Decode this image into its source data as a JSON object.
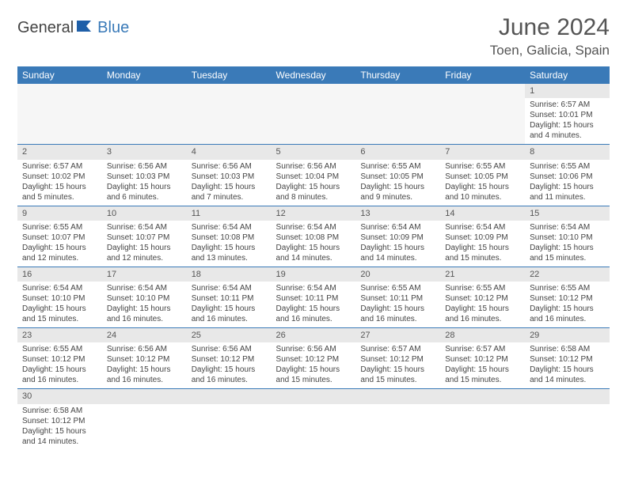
{
  "logo": {
    "part1": "General",
    "part2": "Blue"
  },
  "title": "June 2024",
  "location": "Toen, Galicia, Spain",
  "colors": {
    "header_bg": "#3a7ab8",
    "header_text": "#ffffff",
    "daynum_bg": "#e8e8e8",
    "text": "#444444",
    "logo_blue": "#3a7ab8"
  },
  "font": {
    "family": "Arial",
    "daynum_size": 11,
    "detail_size": 10,
    "title_size": 30,
    "location_size": 17,
    "header_size": 12
  },
  "day_headers": [
    "Sunday",
    "Monday",
    "Tuesday",
    "Wednesday",
    "Thursday",
    "Friday",
    "Saturday"
  ],
  "weeks": [
    [
      null,
      null,
      null,
      null,
      null,
      null,
      {
        "n": "1",
        "sunrise": "Sunrise: 6:57 AM",
        "sunset": "Sunset: 10:01 PM",
        "daylight": "Daylight: 15 hours and 4 minutes."
      }
    ],
    [
      {
        "n": "2",
        "sunrise": "Sunrise: 6:57 AM",
        "sunset": "Sunset: 10:02 PM",
        "daylight": "Daylight: 15 hours and 5 minutes."
      },
      {
        "n": "3",
        "sunrise": "Sunrise: 6:56 AM",
        "sunset": "Sunset: 10:03 PM",
        "daylight": "Daylight: 15 hours and 6 minutes."
      },
      {
        "n": "4",
        "sunrise": "Sunrise: 6:56 AM",
        "sunset": "Sunset: 10:03 PM",
        "daylight": "Daylight: 15 hours and 7 minutes."
      },
      {
        "n": "5",
        "sunrise": "Sunrise: 6:56 AM",
        "sunset": "Sunset: 10:04 PM",
        "daylight": "Daylight: 15 hours and 8 minutes."
      },
      {
        "n": "6",
        "sunrise": "Sunrise: 6:55 AM",
        "sunset": "Sunset: 10:05 PM",
        "daylight": "Daylight: 15 hours and 9 minutes."
      },
      {
        "n": "7",
        "sunrise": "Sunrise: 6:55 AM",
        "sunset": "Sunset: 10:05 PM",
        "daylight": "Daylight: 15 hours and 10 minutes."
      },
      {
        "n": "8",
        "sunrise": "Sunrise: 6:55 AM",
        "sunset": "Sunset: 10:06 PM",
        "daylight": "Daylight: 15 hours and 11 minutes."
      }
    ],
    [
      {
        "n": "9",
        "sunrise": "Sunrise: 6:55 AM",
        "sunset": "Sunset: 10:07 PM",
        "daylight": "Daylight: 15 hours and 12 minutes."
      },
      {
        "n": "10",
        "sunrise": "Sunrise: 6:54 AM",
        "sunset": "Sunset: 10:07 PM",
        "daylight": "Daylight: 15 hours and 12 minutes."
      },
      {
        "n": "11",
        "sunrise": "Sunrise: 6:54 AM",
        "sunset": "Sunset: 10:08 PM",
        "daylight": "Daylight: 15 hours and 13 minutes."
      },
      {
        "n": "12",
        "sunrise": "Sunrise: 6:54 AM",
        "sunset": "Sunset: 10:08 PM",
        "daylight": "Daylight: 15 hours and 14 minutes."
      },
      {
        "n": "13",
        "sunrise": "Sunrise: 6:54 AM",
        "sunset": "Sunset: 10:09 PM",
        "daylight": "Daylight: 15 hours and 14 minutes."
      },
      {
        "n": "14",
        "sunrise": "Sunrise: 6:54 AM",
        "sunset": "Sunset: 10:09 PM",
        "daylight": "Daylight: 15 hours and 15 minutes."
      },
      {
        "n": "15",
        "sunrise": "Sunrise: 6:54 AM",
        "sunset": "Sunset: 10:10 PM",
        "daylight": "Daylight: 15 hours and 15 minutes."
      }
    ],
    [
      {
        "n": "16",
        "sunrise": "Sunrise: 6:54 AM",
        "sunset": "Sunset: 10:10 PM",
        "daylight": "Daylight: 15 hours and 15 minutes."
      },
      {
        "n": "17",
        "sunrise": "Sunrise: 6:54 AM",
        "sunset": "Sunset: 10:10 PM",
        "daylight": "Daylight: 15 hours and 16 minutes."
      },
      {
        "n": "18",
        "sunrise": "Sunrise: 6:54 AM",
        "sunset": "Sunset: 10:11 PM",
        "daylight": "Daylight: 15 hours and 16 minutes."
      },
      {
        "n": "19",
        "sunrise": "Sunrise: 6:54 AM",
        "sunset": "Sunset: 10:11 PM",
        "daylight": "Daylight: 15 hours and 16 minutes."
      },
      {
        "n": "20",
        "sunrise": "Sunrise: 6:55 AM",
        "sunset": "Sunset: 10:11 PM",
        "daylight": "Daylight: 15 hours and 16 minutes."
      },
      {
        "n": "21",
        "sunrise": "Sunrise: 6:55 AM",
        "sunset": "Sunset: 10:12 PM",
        "daylight": "Daylight: 15 hours and 16 minutes."
      },
      {
        "n": "22",
        "sunrise": "Sunrise: 6:55 AM",
        "sunset": "Sunset: 10:12 PM",
        "daylight": "Daylight: 15 hours and 16 minutes."
      }
    ],
    [
      {
        "n": "23",
        "sunrise": "Sunrise: 6:55 AM",
        "sunset": "Sunset: 10:12 PM",
        "daylight": "Daylight: 15 hours and 16 minutes."
      },
      {
        "n": "24",
        "sunrise": "Sunrise: 6:56 AM",
        "sunset": "Sunset: 10:12 PM",
        "daylight": "Daylight: 15 hours and 16 minutes."
      },
      {
        "n": "25",
        "sunrise": "Sunrise: 6:56 AM",
        "sunset": "Sunset: 10:12 PM",
        "daylight": "Daylight: 15 hours and 16 minutes."
      },
      {
        "n": "26",
        "sunrise": "Sunrise: 6:56 AM",
        "sunset": "Sunset: 10:12 PM",
        "daylight": "Daylight: 15 hours and 15 minutes."
      },
      {
        "n": "27",
        "sunrise": "Sunrise: 6:57 AM",
        "sunset": "Sunset: 10:12 PM",
        "daylight": "Daylight: 15 hours and 15 minutes."
      },
      {
        "n": "28",
        "sunrise": "Sunrise: 6:57 AM",
        "sunset": "Sunset: 10:12 PM",
        "daylight": "Daylight: 15 hours and 15 minutes."
      },
      {
        "n": "29",
        "sunrise": "Sunrise: 6:58 AM",
        "sunset": "Sunset: 10:12 PM",
        "daylight": "Daylight: 15 hours and 14 minutes."
      }
    ],
    [
      {
        "n": "30",
        "sunrise": "Sunrise: 6:58 AM",
        "sunset": "Sunset: 10:12 PM",
        "daylight": "Daylight: 15 hours and 14 minutes."
      },
      null,
      null,
      null,
      null,
      null,
      null
    ]
  ]
}
